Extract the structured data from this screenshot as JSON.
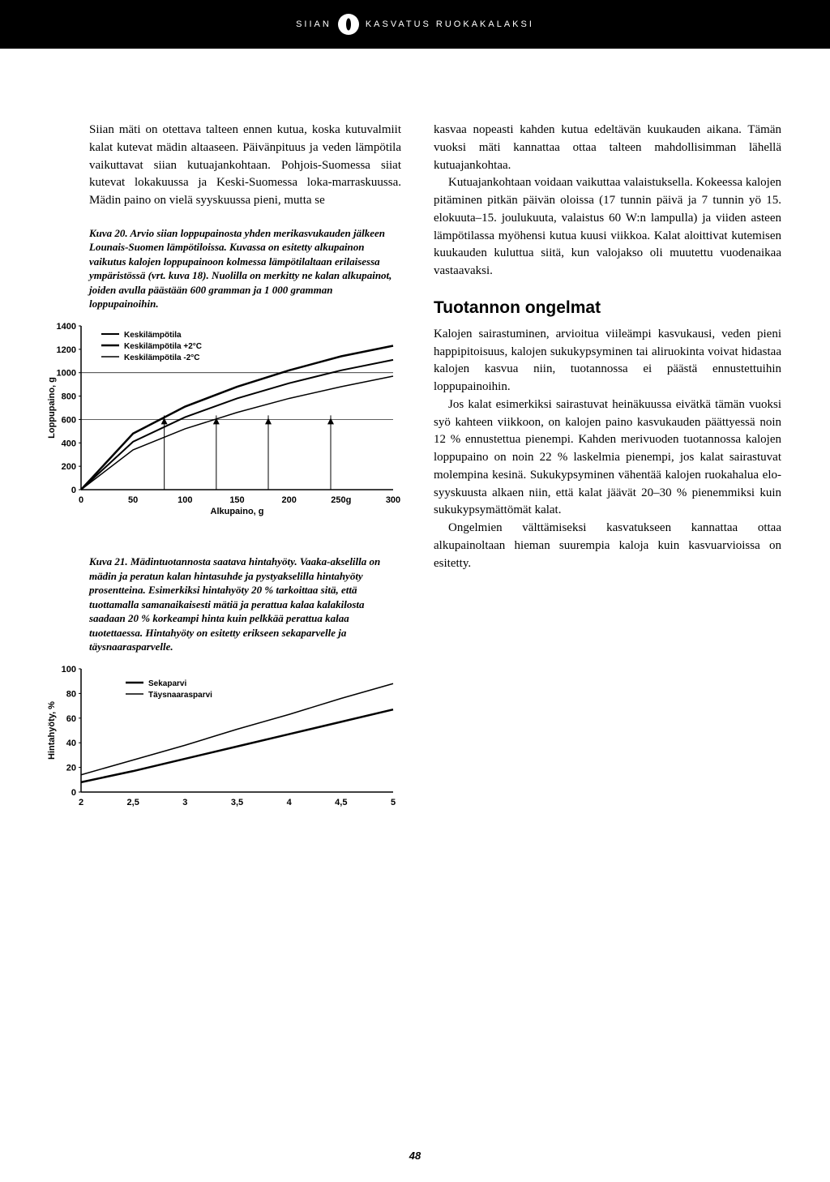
{
  "header": {
    "left": "SIIAN",
    "right": "KASVATUS RUOKAKALAKSI"
  },
  "left_intro": {
    "p1": "Siian mäti on otettava talteen ennen kutua, koska kutuvalmiit kalat kutevat mädin altaaseen. Päivänpituus ja veden lämpötila vaikuttavat siian kutuajankohtaan. Pohjois-Suomessa siiat kutevat lokakuussa ja Keski-Suomessa loka-marraskuussa. Mädin paino on vielä syyskuussa pieni, mutta se"
  },
  "kuva20": {
    "num": "Kuva 20.",
    "text": "Arvio siian loppupainosta yhden merikasvukauden jälkeen Lounais-Suomen lämpötiloissa. Kuvassa on esitetty alkupainon vaikutus kalojen loppupainoon kolmessa lämpötilaltaan erilaisessa ympäristössä (vrt. kuva 18). Nuolilla on merkitty ne kalan alkupainot, joiden avulla päästään 600 gramman ja 1 000 gramman loppupainoihin."
  },
  "chart1": {
    "type": "line",
    "ylabel": "Loppupaino, g",
    "xlabel": "Alkupaino, g",
    "y_ticks": [
      "0",
      "200",
      "400",
      "600",
      "800",
      "1000",
      "1200",
      "1400"
    ],
    "x_ticks": [
      "0",
      "50",
      "100",
      "150",
      "200",
      "250g",
      "300"
    ],
    "legend": [
      "Keskilämpötila",
      "Keskilämpötila +2°C",
      "Keskilämpötila -2°C"
    ],
    "series": [
      {
        "pts": [
          [
            0,
            0
          ],
          [
            50,
            410
          ],
          [
            100,
            620
          ],
          [
            150,
            780
          ],
          [
            200,
            910
          ],
          [
            250,
            1020
          ],
          [
            300,
            1110
          ]
        ],
        "color": "#000",
        "w": 2
      },
      {
        "pts": [
          [
            0,
            0
          ],
          [
            50,
            480
          ],
          [
            100,
            710
          ],
          [
            150,
            880
          ],
          [
            200,
            1020
          ],
          [
            250,
            1140
          ],
          [
            300,
            1230
          ]
        ],
        "color": "#000",
        "w": 2.5
      },
      {
        "pts": [
          [
            0,
            0
          ],
          [
            50,
            340
          ],
          [
            100,
            520
          ],
          [
            150,
            660
          ],
          [
            200,
            780
          ],
          [
            250,
            880
          ],
          [
            300,
            970
          ]
        ],
        "color": "#000",
        "w": 1.5
      }
    ],
    "arrows_x": [
      80,
      130,
      180,
      240
    ],
    "hlines": [
      600,
      1000
    ],
    "ylim": [
      0,
      1400
    ],
    "xlim": [
      0,
      300
    ],
    "axis_color": "#000",
    "bg": "#ffffff"
  },
  "kuva21": {
    "num": "Kuva 21.",
    "text": "Mädintuotannosta saatava hintahyöty. Vaaka-akselilla on mädin ja peratun kalan hintasuhde ja pystyakselilla hintahyöty prosentteina. Esimerkiksi hintahyöty 20 % tarkoittaa sitä, että tuottamalla samanaikaisesti mätiä ja perattua kalaa kalakilosta saadaan 20 % korkeampi hinta kuin pelkkää perattua kalaa tuotettaessa. Hintahyöty on esitetty erikseen sekaparvelle ja täysnaarasparvelle."
  },
  "chart2": {
    "type": "line",
    "ylabel": "Hintahyöty, %",
    "y_ticks": [
      "0",
      "20",
      "40",
      "60",
      "80",
      "100"
    ],
    "x_ticks": [
      "2",
      "2,5",
      "3",
      "3,5",
      "4",
      "4,5",
      "5"
    ],
    "legend": [
      "Sekaparvi",
      "Täysnaarasparvi"
    ],
    "series": [
      {
        "pts": [
          [
            2,
            8
          ],
          [
            2.5,
            17
          ],
          [
            3,
            27
          ],
          [
            3.5,
            37
          ],
          [
            4,
            47
          ],
          [
            4.5,
            57
          ],
          [
            5,
            67
          ]
        ],
        "color": "#000",
        "w": 2.5
      },
      {
        "pts": [
          [
            2,
            14
          ],
          [
            2.5,
            26
          ],
          [
            3,
            38
          ],
          [
            3.5,
            51
          ],
          [
            4,
            63
          ],
          [
            4.5,
            76
          ],
          [
            5,
            88
          ]
        ],
        "color": "#000",
        "w": 1.5
      }
    ],
    "ylim": [
      0,
      100
    ],
    "xlim": [
      2,
      5
    ],
    "axis_color": "#000",
    "bg": "#ffffff"
  },
  "right": {
    "p1": "kasvaa nopeasti kahden kutua edeltävän kuukauden aikana. Tämän vuoksi mäti kannattaa ottaa talteen mahdollisimman lähellä kutuajankohtaa.",
    "p2": "Kutuajankohtaan voidaan vaikuttaa valaistuksella. Kokeessa kalojen pitäminen pitkän päivän oloissa (17 tunnin päivä ja 7 tunnin yö 15. elokuuta–15. joulukuuta, valaistus 60 W:n lampulla) ja viiden asteen lämpötilassa myöhensi kutua kuusi viikkoa. Kalat aloittivat kutemisen kuukauden kuluttua siitä, kun valojakso oli muutettu vuodenaikaa vastaavaksi.",
    "h": "Tuotannon ongelmat",
    "p3": "Kalojen sairastuminen, arvioitua viileämpi kasvukausi, veden pieni happipitoisuus, kalojen sukukypsyminen tai aliruokinta voivat hidastaa kalojen kasvua niin, tuotannossa ei päästä ennustettuihin loppupainoihin.",
    "p4": "Jos kalat esimerkiksi sairastuvat heinäkuussa eivätkä tämän vuoksi syö kahteen viikkoon, on kalojen paino kasvukauden päättyessä noin 12 % ennustettua pienempi. Kahden merivuoden tuotannossa kalojen loppupaino on noin 22 % laskelmia pienempi, jos kalat sairastuvat molempina kesinä. Sukukypsyminen vähentää kalojen ruokahalua elo-syyskuusta alkaen niin, että kalat jäävät 20–30 % pienemmiksi kuin sukukypsymättömät kalat.",
    "p5": "Ongelmien välttämiseksi kasvatukseen kannattaa ottaa alkupainoltaan hieman suurempia kaloja kuin kasvuarvioissa on esitetty."
  },
  "pagenum": "48"
}
